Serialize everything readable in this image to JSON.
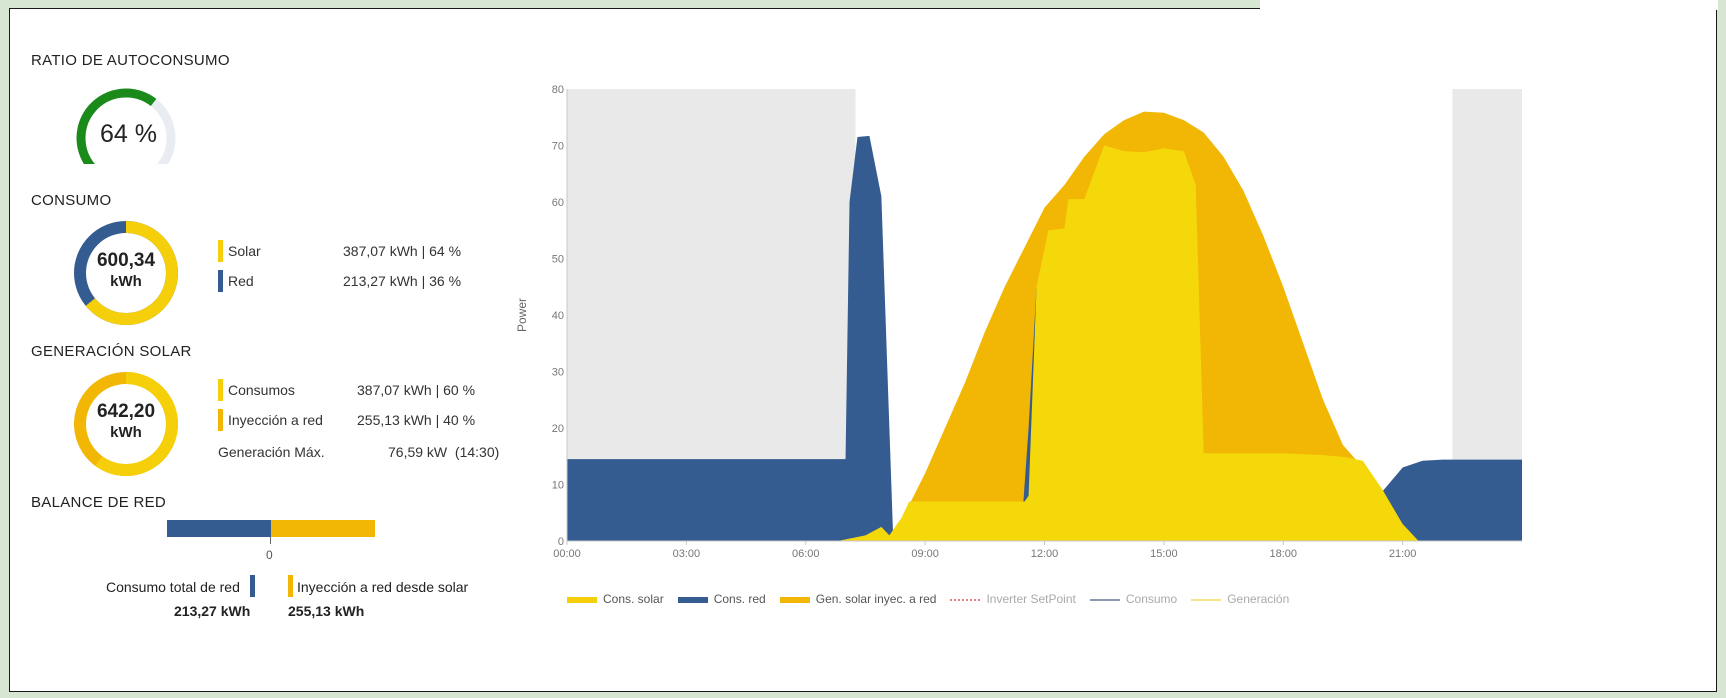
{
  "self_consumption": {
    "title": "RATIO DE AUTOCONSUMO",
    "value_text": "64 %",
    "fraction": 0.64,
    "color": "#1a8a1a"
  },
  "consumption": {
    "title": "CONSUMO",
    "total": "600,34",
    "unit": "kWh",
    "items": [
      {
        "label": "Solar",
        "value": "387,07 kWh | 64 %",
        "color": "#f5cf0a",
        "fraction": 0.64
      },
      {
        "label": "Red",
        "value": "213,27 kWh | 36 %",
        "color": "#345c91",
        "fraction": 0.36
      }
    ]
  },
  "solar_generation": {
    "title": "GENERACIÓN SOLAR",
    "total": "642,20",
    "unit": "kWh",
    "items": [
      {
        "label": "Consumos",
        "value": "387,07 kWh | 60 %",
        "color": "#f5cf0a",
        "fraction": 0.6
      },
      {
        "label": "Inyección a red",
        "value": "255,13 kWh | 40 %",
        "color": "#f2b705",
        "fraction": 0.4
      }
    ],
    "max_label": "Generación Máx.",
    "max_value": "76,59 kW  (14:30)"
  },
  "grid_balance": {
    "title": "BALANCE DE RED",
    "zero_label": "0",
    "left_label": "Consumo total de red",
    "left_value": "213,27 kWh",
    "right_label": "Inyección a red desde solar",
    "right_value": "255,13 kWh",
    "left_color": "#345c91",
    "right_color": "#f2b705"
  },
  "chart_data": {
    "type": "area",
    "ylabel": "Power",
    "ylim": [
      0,
      80
    ],
    "yticks": [
      "0",
      "10",
      "20",
      "30",
      "40",
      "50",
      "60",
      "70",
      "80"
    ],
    "xticks": [
      "00:00",
      "03:00",
      "06:00",
      "09:00",
      "12:00",
      "15:00",
      "18:00",
      "21:00"
    ],
    "xlim_hours": [
      0,
      24
    ],
    "night_shading": [
      [
        0,
        7.25
      ],
      [
        22.25,
        24
      ]
    ],
    "series": [
      {
        "name": "Cons. solar",
        "color": "#f5d80a",
        "points": [
          [
            0,
            0
          ],
          [
            6.8,
            0
          ],
          [
            7.5,
            1
          ],
          [
            7.9,
            2.5
          ],
          [
            8.1,
            1
          ],
          [
            8.4,
            4
          ],
          [
            8.6,
            7
          ],
          [
            11.5,
            7
          ],
          [
            11.6,
            8
          ],
          [
            11.8,
            45
          ],
          [
            12.1,
            55
          ],
          [
            12.5,
            55.3
          ],
          [
            12.6,
            60.5
          ],
          [
            13,
            60.5
          ],
          [
            13.5,
            70
          ],
          [
            14,
            69
          ],
          [
            14.5,
            68.8
          ],
          [
            15,
            69.5
          ],
          [
            15.5,
            69
          ],
          [
            15.8,
            63
          ],
          [
            16,
            15.5
          ],
          [
            17,
            15.5
          ],
          [
            18,
            15.5
          ],
          [
            19,
            15.2
          ],
          [
            19.6,
            14.8
          ],
          [
            20,
            14.2
          ],
          [
            20.5,
            9
          ],
          [
            21,
            3
          ],
          [
            21.4,
            0
          ],
          [
            24,
            0
          ]
        ]
      },
      {
        "name": "Cons. red",
        "color": "#345c91",
        "points": [
          [
            0,
            14.5
          ],
          [
            7,
            14.5
          ],
          [
            7.1,
            60
          ],
          [
            7.3,
            71.5
          ],
          [
            7.6,
            71.7
          ],
          [
            7.9,
            61
          ],
          [
            8.2,
            0
          ],
          [
            11.4,
            0
          ],
          [
            11.6,
            20
          ],
          [
            11.8,
            45
          ],
          [
            12.0,
            0
          ],
          [
            20.0,
            0
          ],
          [
            20.4,
            8
          ],
          [
            21,
            13
          ],
          [
            21.5,
            14.2
          ],
          [
            22,
            14.4
          ],
          [
            24,
            14.4
          ]
        ]
      },
      {
        "name": "Gen. solar inyec. a red",
        "color": "#f2b705",
        "points": [
          [
            8,
            0
          ],
          [
            8.5,
            5
          ],
          [
            9,
            12
          ],
          [
            9.5,
            20
          ],
          [
            10,
            28
          ],
          [
            10.5,
            37
          ],
          [
            11,
            45
          ],
          [
            11.5,
            52
          ],
          [
            12,
            59
          ],
          [
            12.5,
            63
          ],
          [
            13,
            68
          ],
          [
            13.5,
            72
          ],
          [
            14,
            74.5
          ],
          [
            14.5,
            76
          ],
          [
            15,
            75.8
          ],
          [
            15.5,
            74.5
          ],
          [
            16,
            72.3
          ],
          [
            16.5,
            68
          ],
          [
            17,
            62
          ],
          [
            17.5,
            54
          ],
          [
            18,
            45
          ],
          [
            18.5,
            35
          ],
          [
            19,
            25
          ],
          [
            19.5,
            17
          ],
          [
            20,
            13
          ],
          [
            20.5,
            9
          ],
          [
            21,
            3
          ],
          [
            21.4,
            0
          ]
        ]
      }
    ],
    "legend": [
      {
        "name": "Cons. solar",
        "color": "#f5cf0a",
        "style": "solid",
        "faded": false
      },
      {
        "name": "Cons. red",
        "color": "#345c91",
        "style": "solid",
        "faded": false
      },
      {
        "name": "Gen. solar inyec. a red",
        "color": "#f2b705",
        "style": "solid",
        "faded": false
      },
      {
        "name": "Inverter SetPoint",
        "color": "#e08080",
        "style": "dotted",
        "faded": true
      },
      {
        "name": "Consumo",
        "color": "#8a9ab0",
        "style": "line",
        "faded": true
      },
      {
        "name": "Generación",
        "color": "#f7e48a",
        "style": "line",
        "faded": true
      }
    ]
  }
}
